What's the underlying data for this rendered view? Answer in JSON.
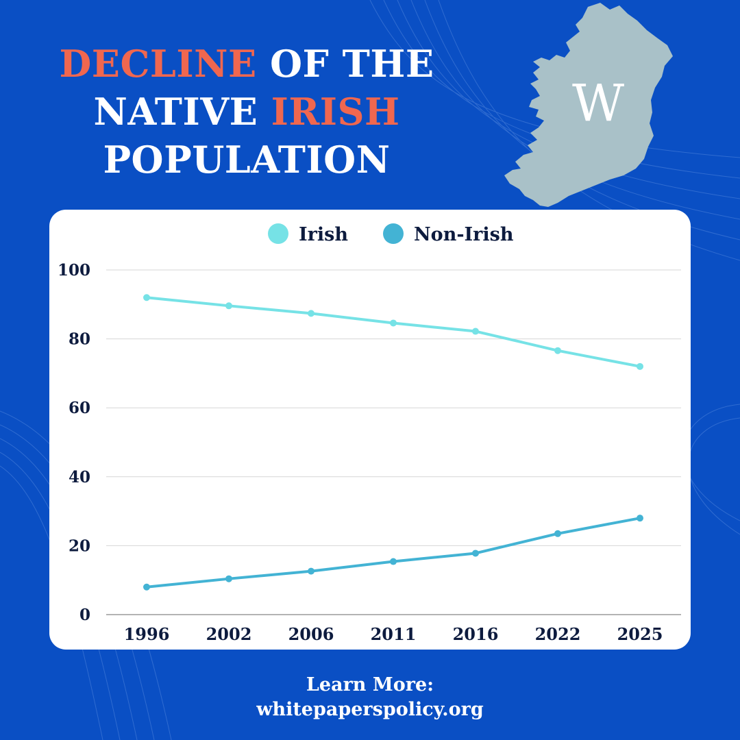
{
  "title": {
    "line1_accent": "DECLINE",
    "line1_rest": "OF THE",
    "line2_prefix": "NATIVE",
    "line2_accent": "IRISH",
    "line3": "POPULATION"
  },
  "logo": {
    "letter": "W"
  },
  "colors": {
    "background": "#0a4fc4",
    "accent": "#f0674f",
    "map": "#a9c1c8",
    "irish_series": "#76e2e6",
    "non_irish_series": "#43b3d4"
  },
  "chart_data": {
    "type": "line",
    "title": "",
    "xlabel": "",
    "ylabel": "",
    "categories": [
      "1996",
      "2002",
      "2006",
      "2011",
      "2016",
      "2022",
      "2025"
    ],
    "ylim": [
      0,
      100
    ],
    "yticks": [
      "0",
      "20",
      "40",
      "60",
      "80",
      "100"
    ],
    "grid": true,
    "legend_position": "top-center",
    "series": [
      {
        "name": "Irish",
        "color": "#76e2e6",
        "values": [
          92,
          89.6,
          87.4,
          84.6,
          82.2,
          76.6,
          72
        ]
      },
      {
        "name": "Non-Irish",
        "color": "#43b3d4",
        "values": [
          8,
          10.4,
          12.6,
          15.4,
          17.8,
          23.5,
          28
        ]
      }
    ]
  },
  "footer": {
    "line1": "Learn More:",
    "line2": "whitepaperspolicy.org"
  }
}
